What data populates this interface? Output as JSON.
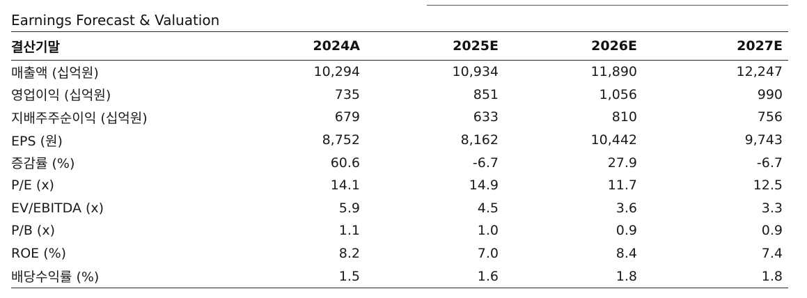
{
  "title": "Earnings Forecast & Valuation",
  "table": {
    "header": [
      "결산기말",
      "2024A",
      "2025E",
      "2026E",
      "2027E"
    ],
    "rows": [
      {
        "label": "매출액 (십억원)",
        "values": [
          "10,294",
          "10,934",
          "11,890",
          "12,247"
        ]
      },
      {
        "label": "영업이익 (십억원)",
        "values": [
          "735",
          "851",
          "1,056",
          "990"
        ]
      },
      {
        "label": "지배주주순이익 (십억원)",
        "values": [
          "679",
          "633",
          "810",
          "756"
        ]
      },
      {
        "label": "EPS (원)",
        "values": [
          "8,752",
          "8,162",
          "10,442",
          "9,743"
        ]
      },
      {
        "label": "증감률 (%)",
        "values": [
          "60.6",
          "-6.7",
          "27.9",
          "-6.7"
        ]
      },
      {
        "label": "P/E (x)",
        "values": [
          "14.1",
          "14.9",
          "11.7",
          "12.5"
        ]
      },
      {
        "label": "EV/EBITDA (x)",
        "values": [
          "5.9",
          "4.5",
          "3.6",
          "3.3"
        ]
      },
      {
        "label": "P/B (x)",
        "values": [
          "1.1",
          "1.0",
          "0.9",
          "0.9"
        ]
      },
      {
        "label": "ROE (%)",
        "values": [
          "8.2",
          "7.0",
          "8.4",
          "7.4"
        ]
      },
      {
        "label": "배당수익률 (%)",
        "values": [
          "1.5",
          "1.6",
          "1.8",
          "1.8"
        ]
      }
    ]
  }
}
